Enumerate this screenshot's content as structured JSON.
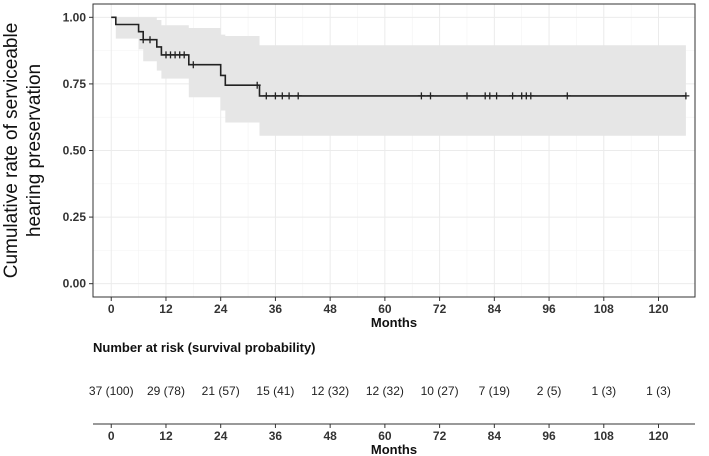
{
  "chart_data": [
    {
      "type": "line",
      "subtype": "kaplan-meier",
      "ylabel_lines": [
        "Cumulative rate of serviceable",
        "hearing preservation"
      ],
      "xlabel": "Months",
      "xlim": [
        -4,
        128
      ],
      "ylim": [
        -0.05,
        1.05
      ],
      "x_ticks": [
        0,
        12,
        24,
        36,
        48,
        60,
        72,
        84,
        96,
        108,
        120
      ],
      "x_tick_labels": [
        "0",
        "12",
        "24",
        "36",
        "48",
        "60",
        "72",
        "84",
        "96",
        "108",
        "120"
      ],
      "y_ticks": [
        0,
        0.25,
        0.5,
        0.75,
        1.0
      ],
      "y_tick_labels": [
        "0.00",
        "0.25",
        "0.50",
        "0.75",
        "1.00"
      ],
      "grid": true,
      "colors": {
        "line": "#222222",
        "ci_band": "#e6e6e6",
        "panel": "#ffffff",
        "grid": "#ebebeb",
        "border": "#333333"
      },
      "steps": [
        {
          "time": 0,
          "survival": 1.0
        },
        {
          "time": 1,
          "survival": 0.973
        },
        {
          "time": 6,
          "survival": 0.946
        },
        {
          "time": 7,
          "survival": 0.916
        },
        {
          "time": 10,
          "survival": 0.889
        },
        {
          "time": 11,
          "survival": 0.859
        },
        {
          "time": 17,
          "survival": 0.822
        },
        {
          "time": 24,
          "survival": 0.782
        },
        {
          "time": 25,
          "survival": 0.745
        },
        {
          "time": 32.5,
          "survival": 0.705
        },
        {
          "time": 126,
          "survival": 0.705
        }
      ],
      "ci_band": [
        {
          "time": 0,
          "lower": 1.0,
          "upper": 1.0
        },
        {
          "time": 1,
          "lower": 0.92,
          "upper": 1.0
        },
        {
          "time": 6,
          "lower": 0.88,
          "upper": 1.0
        },
        {
          "time": 7,
          "lower": 0.835,
          "upper": 1.0
        },
        {
          "time": 10,
          "lower": 0.8,
          "upper": 0.99
        },
        {
          "time": 11,
          "lower": 0.77,
          "upper": 0.97
        },
        {
          "time": 17,
          "lower": 0.7,
          "upper": 0.96
        },
        {
          "time": 24,
          "lower": 0.65,
          "upper": 0.935
        },
        {
          "time": 25,
          "lower": 0.605,
          "upper": 0.93
        },
        {
          "time": 32.5,
          "lower": 0.555,
          "upper": 0.895
        },
        {
          "time": 126,
          "lower": 0.555,
          "upper": 0.895
        }
      ],
      "censor_times": [
        7,
        8.5,
        12,
        13,
        14,
        15,
        16,
        18,
        32,
        34,
        36,
        37.5,
        39,
        41,
        68,
        70,
        78,
        82,
        83,
        84.5,
        88,
        90,
        91,
        92,
        100,
        126
      ]
    },
    {
      "type": "table",
      "title": "Number at risk (survival probability)",
      "xlabel": "Months",
      "x_ticks": [
        0,
        12,
        24,
        36,
        48,
        60,
        72,
        84,
        96,
        108,
        120
      ],
      "x_tick_labels": [
        "0",
        "12",
        "24",
        "36",
        "48",
        "60",
        "72",
        "84",
        "96",
        "108",
        "120"
      ],
      "entries": [
        "37 (100)",
        "29 (78)",
        "21 (57)",
        "15 (41)",
        "12 (32)",
        "12 (32)",
        "10 (27)",
        "7 (19)",
        "2 (5)",
        "1 (3)",
        "1 (3)"
      ]
    }
  ]
}
